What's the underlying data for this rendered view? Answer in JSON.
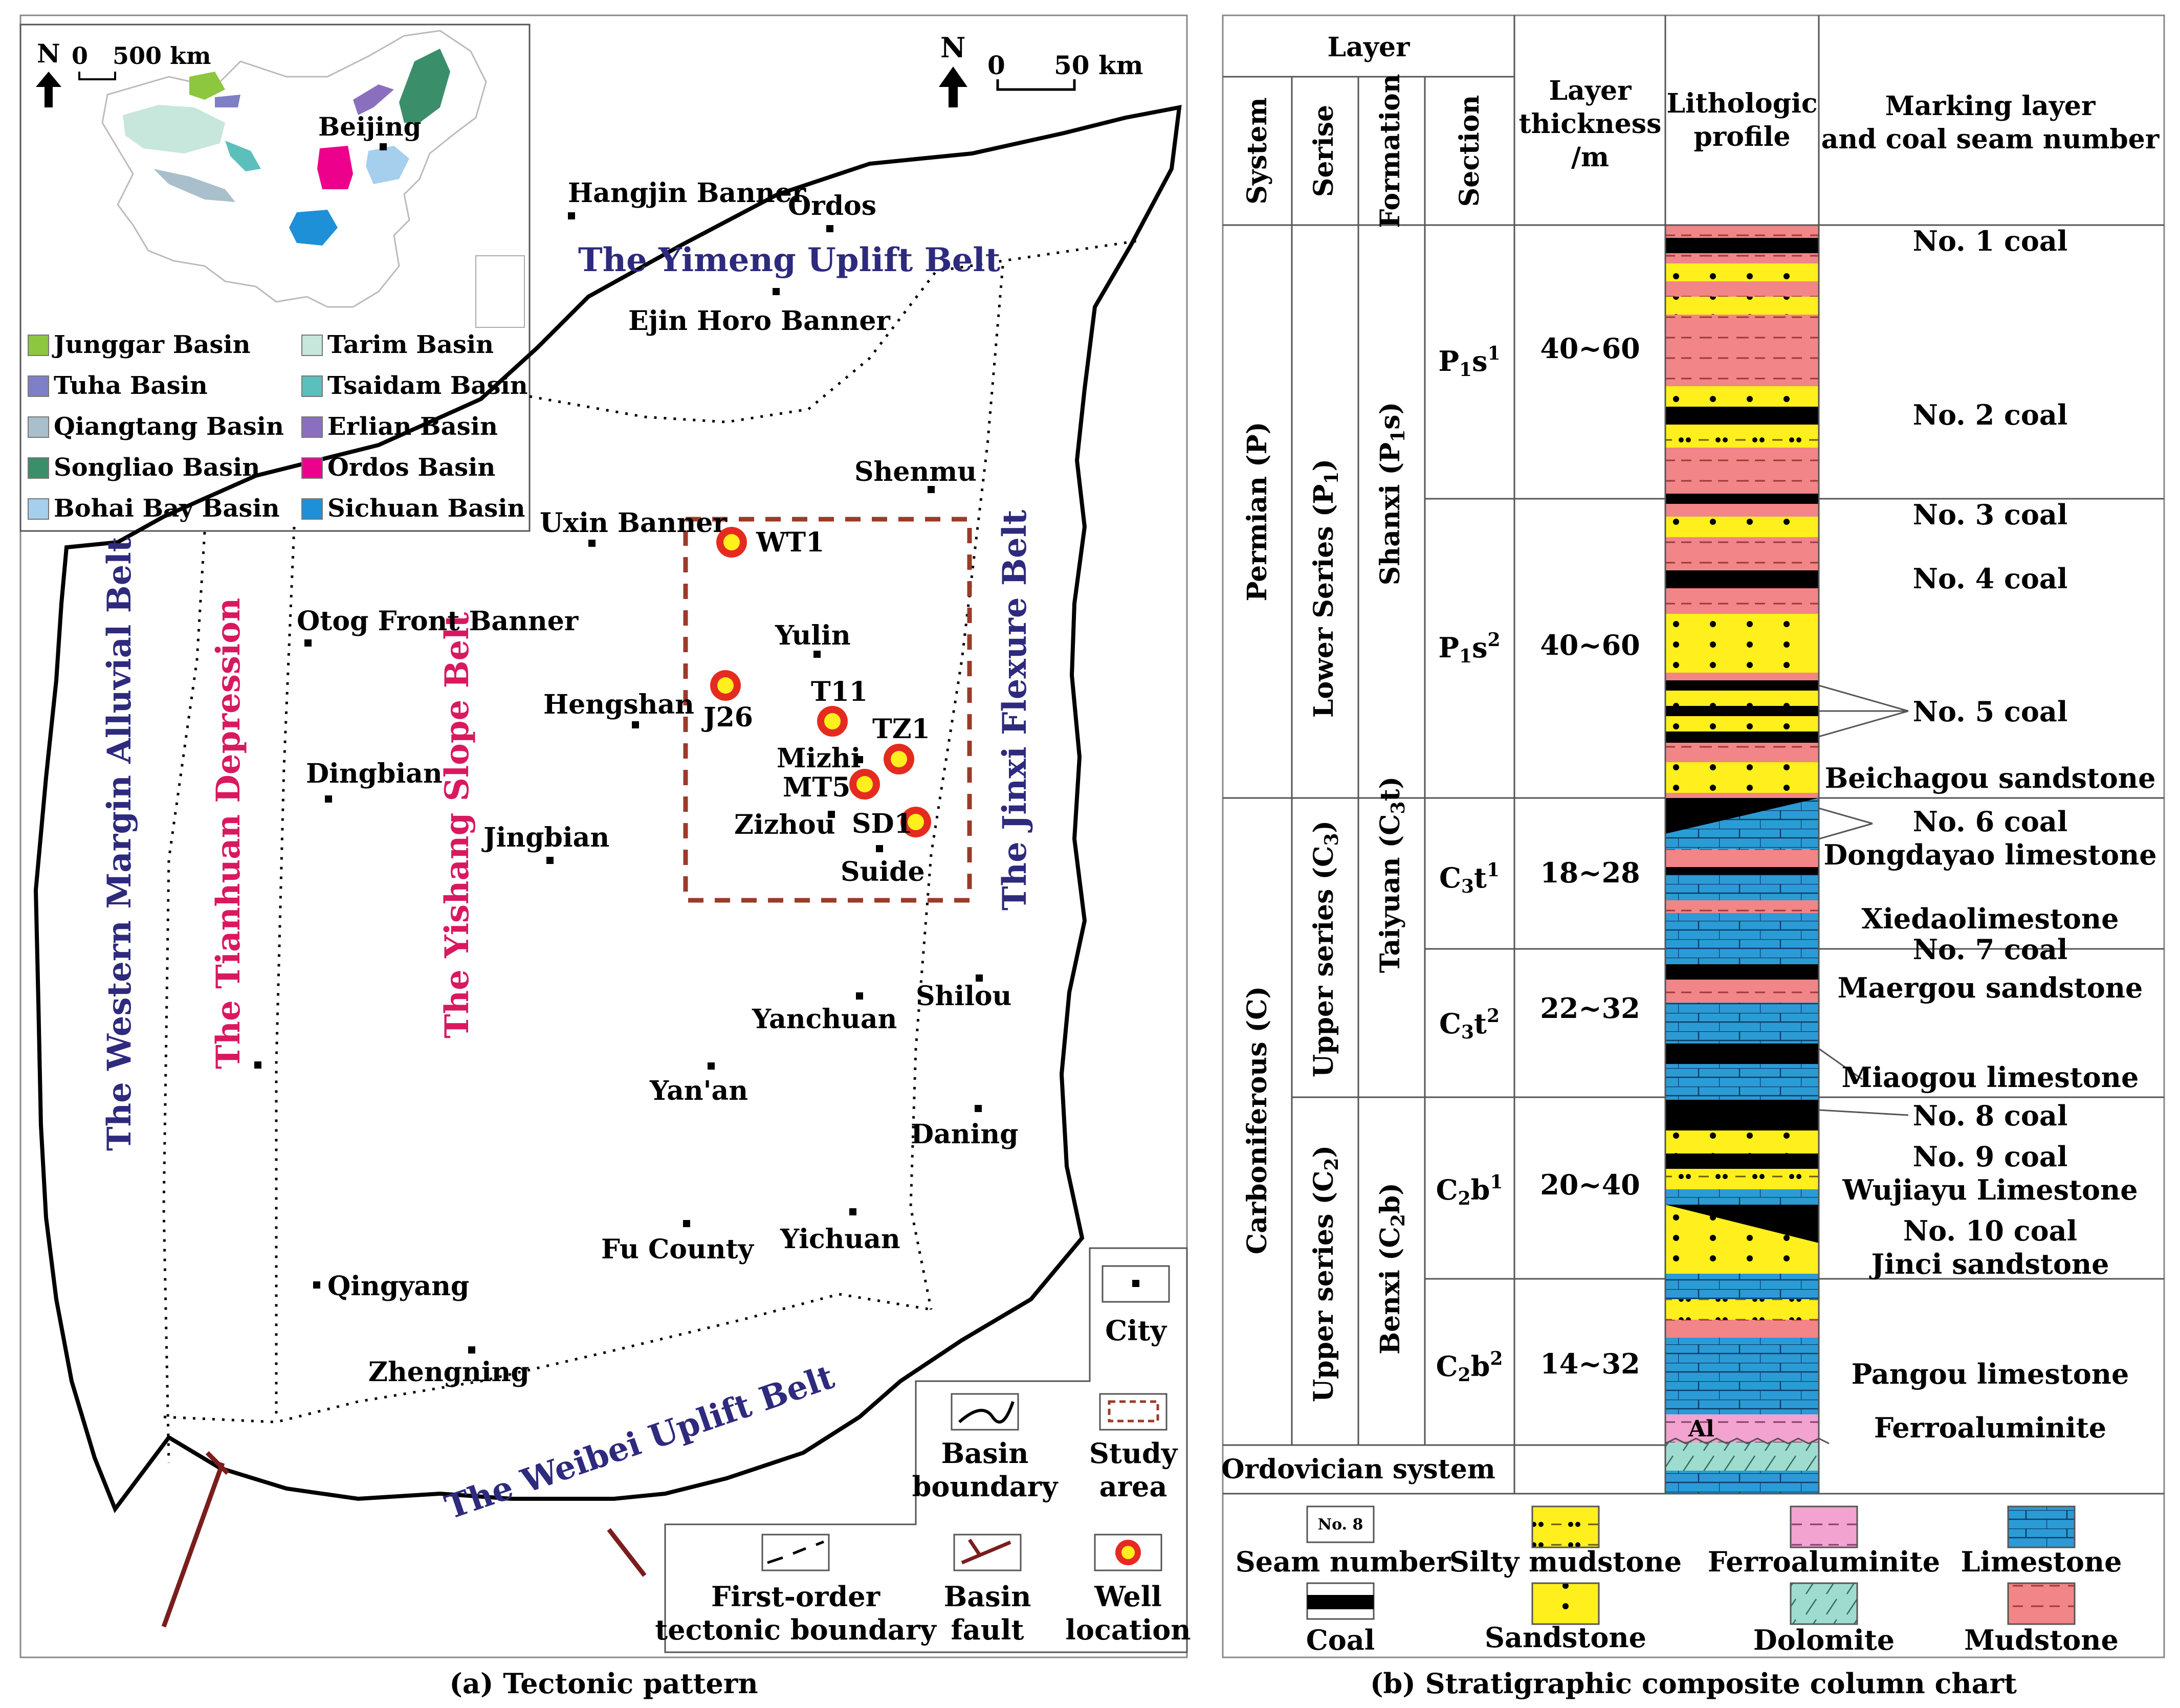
{
  "map": {
    "caption": "(a) Tectonic pattern",
    "north": "N",
    "scale_zero": "0",
    "scale_label": "50 km",
    "inset": {
      "north": "N",
      "scale_zero": "0",
      "scale_label": "500 km",
      "city": "Beijing",
      "legend": [
        {
          "label": "Junggar Basin",
          "color": "#8dc63f"
        },
        {
          "label": "Tarim Basin",
          "color": "#c7e6dc"
        },
        {
          "label": "Tuha Basin",
          "color": "#7f7fc7"
        },
        {
          "label": "Tsaidam Basin",
          "color": "#5bc0bb"
        },
        {
          "label": "Qiangtang Basin",
          "color": "#a9c0cc"
        },
        {
          "label": "Erlian Basin",
          "color": "#8b6fbf"
        },
        {
          "label": "Songliao Basin",
          "color": "#3a8f6a"
        },
        {
          "label": "Ordos Basin",
          "color": "#ec008c"
        },
        {
          "label": "Bohai Bay Basin",
          "color": "#a6cfee"
        },
        {
          "label": "Sichuan Basin",
          "color": "#1e90d8"
        }
      ]
    },
    "belts": {
      "yimeng": "The Yimeng Uplift Belt",
      "western": "The Western Margin Alluvial Belt",
      "tianhuan": "The Tianhuan Depression",
      "yishang": "The Yishang Slope Belt",
      "jinxi": "The Jinxi Flexure Belt",
      "weibei": "The Weibei Uplift Belt"
    },
    "cities": [
      "Hangjin Banner",
      "Ordos",
      "Ejin Horo Banner",
      "Shenmu",
      "Uxin Banner",
      "Otog Front Banner",
      "Yulin",
      "Hengshan",
      "Dingbian",
      "Jingbian",
      "Mizhi",
      "Zizhou",
      "Suide",
      "Shilou",
      "Yanchuan",
      "Yan'an",
      "Daning",
      "Fu County",
      "Yichuan",
      "Qingyang",
      "Zhengning"
    ],
    "wells": [
      "WT1",
      "J26",
      "T11",
      "TZ1",
      "MT5",
      "SD1"
    ],
    "legend": {
      "city": "City",
      "basin_boundary": [
        "Basin",
        "boundary"
      ],
      "study_area": [
        "Study",
        "area"
      ],
      "tectonic_boundary": [
        "First-order",
        "tectonic boundary"
      ],
      "basin_fault": [
        "Basin",
        "fault"
      ],
      "well_location": [
        "Well",
        "location"
      ]
    }
  },
  "column": {
    "caption": "(b) Stratigraphic composite column chart",
    "headers": {
      "layer": "Layer",
      "system": "System",
      "series": "Serise",
      "formation": "Formation",
      "section": "Section",
      "thickness": [
        "Layer",
        "thickness",
        "/m"
      ],
      "lithology": [
        "Lithologic",
        "profile"
      ],
      "marking": [
        "Marking layer",
        "and coal seam number"
      ]
    },
    "systems": {
      "permian": "Permian (P)",
      "carboniferous": "Carboniferous (C)",
      "ordovician": "Ordovician system"
    },
    "series": {
      "lower_p1": "Lower Series (P",
      "upper_c3": "Upper series (C",
      "upper_c2": "Upper series (C"
    },
    "formations": {
      "shanxi": "Shanxi (P",
      "taiyuan": "Taiyuan (C",
      "benxi": "Benxi (C"
    },
    "sections": [
      {
        "main": "P",
        "sub": "1",
        "base": "s",
        "sup": "1",
        "thickness": "40~60"
      },
      {
        "main": "P",
        "sub": "1",
        "base": "s",
        "sup": "2",
        "thickness": "40~60"
      },
      {
        "main": "C",
        "sub": "3",
        "base": "t",
        "sup": "1",
        "thickness": "18~28"
      },
      {
        "main": "C",
        "sub": "3",
        "base": "t",
        "sup": "2",
        "thickness": "22~32"
      },
      {
        "main": "C",
        "sub": "2",
        "base": "b",
        "sup": "1",
        "thickness": "20~40"
      },
      {
        "main": "C",
        "sub": "2",
        "base": "b",
        "sup": "2",
        "thickness": "14~32"
      }
    ],
    "markers": [
      "No. 1 coal",
      "No. 2 coal",
      "No. 3 coal",
      "No. 4 coal",
      "No. 5 coal",
      "Beichagou sandstone",
      "No. 6 coal",
      "Dongdayao limestone",
      "Xiedaolimestone",
      "No. 7 coal",
      "Maergou sandstone",
      "Miaogou limestone",
      "No. 8 coal",
      "No. 9 coal",
      "Wujiayu Limestone",
      "No. 10 coal",
      "Jinci sandstone",
      "Pangou limestone",
      "Ferroaluminite"
    ],
    "al_mark": "Al",
    "legend": {
      "seam_sample": "No. 8",
      "seam_number": "Seam number",
      "silty_mudstone": "Silty mudstone",
      "ferroaluminite": "Ferroaluminite",
      "limestone": "Limestone",
      "coal": "Coal",
      "sandstone": "Sandstone",
      "dolomite": "Dolomite",
      "mudstone": "Mudstone"
    }
  },
  "colors": {
    "belt_blue": "#2e2a7d",
    "belt_pink": "#d9185f",
    "mudstone": "#f28587",
    "sandstone": "#ffef1d",
    "limestone": "#2b9bd6",
    "dolomite": "#9fdcd0",
    "ferroaluminite": "#f2a3cf",
    "coal": "#000000",
    "fault": "#7a1d1d",
    "study_area": "#9c3a2a"
  }
}
